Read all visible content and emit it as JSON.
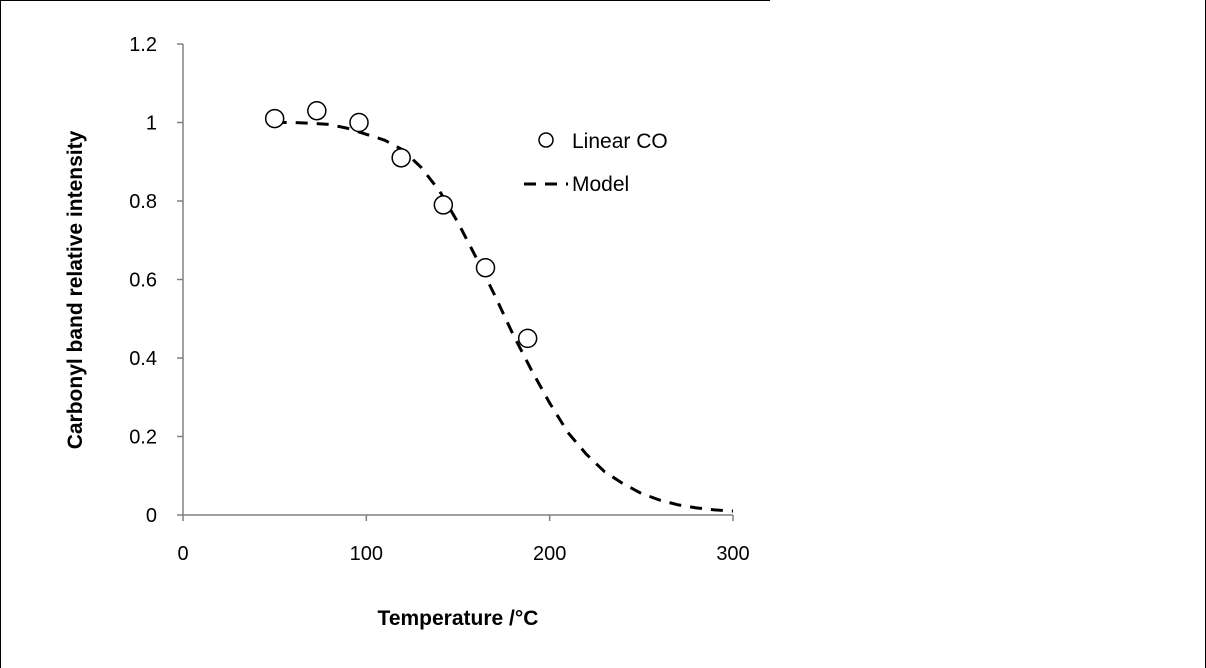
{
  "chart_data": {
    "type": "scatter",
    "title": "",
    "xlabel": "Temperature /°C",
    "ylabel": "Carbonyl band relative intensity",
    "xlim": [
      0,
      300
    ],
    "ylim": [
      0,
      1.2
    ],
    "x_ticks": [
      0,
      100,
      200,
      300
    ],
    "y_ticks": [
      0,
      0.2,
      0.4,
      0.6,
      0.8,
      1,
      1.2
    ],
    "x_tick_labels": [
      "0",
      "100",
      "200",
      "300"
    ],
    "y_tick_labels": [
      "0",
      "0.2",
      "0.4",
      "0.6",
      "0.8",
      "1",
      "1.2"
    ],
    "grid": false,
    "legend_position": "right",
    "series": [
      {
        "name": "Linear CO",
        "kind": "marker",
        "marker": "open-circle",
        "x": [
          50,
          73,
          96,
          119,
          142,
          165,
          188
        ],
        "y": [
          1.01,
          1.03,
          1.0,
          0.91,
          0.79,
          0.63,
          0.45
        ]
      },
      {
        "name": "Model",
        "kind": "line",
        "style": "dashed",
        "x": [
          50,
          60,
          70,
          80,
          90,
          100,
          110,
          120,
          130,
          140,
          150,
          160,
          170,
          180,
          190,
          200,
          210,
          220,
          230,
          240,
          250,
          260,
          270,
          280,
          290,
          300
        ],
        "y": [
          1.0,
          1.0,
          0.998,
          0.995,
          0.985,
          0.97,
          0.955,
          0.93,
          0.885,
          0.825,
          0.745,
          0.655,
          0.56,
          0.46,
          0.37,
          0.285,
          0.21,
          0.155,
          0.11,
          0.08,
          0.055,
          0.038,
          0.026,
          0.018,
          0.013,
          0.01
        ]
      }
    ]
  }
}
